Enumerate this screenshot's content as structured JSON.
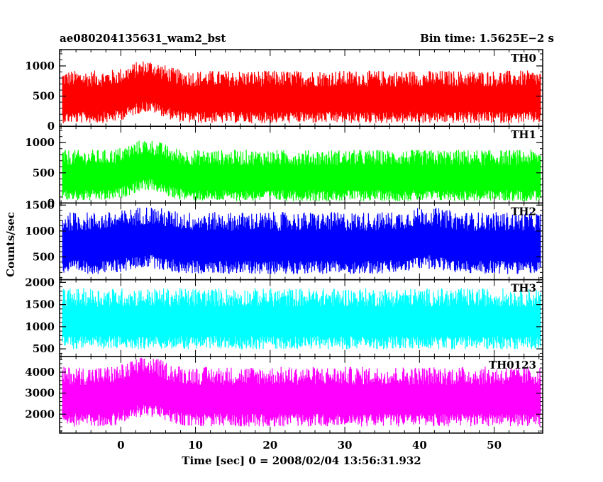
{
  "header": {
    "title": "ae080204135631_wam2_bst",
    "bin_time": "Bin time: 1.5625E−2 s"
  },
  "chart_data": {
    "type": "line",
    "xlabel": "Time [sec] 0 = 2008/02/04 13:56:31.932",
    "ylabel": "Counts/sec",
    "xlim": [
      -8.2,
      56.5
    ],
    "data_range": [
      -7.8,
      56.2
    ],
    "x_ticks": [
      0,
      10,
      20,
      30,
      40,
      50
    ],
    "x_tick_labels": [
      "0",
      "10",
      "20",
      "30",
      "40",
      "50"
    ],
    "panels": [
      {
        "name": "TH0",
        "color": "#ff0000",
        "ylim": [
          0,
          1270
        ],
        "y_ticks": [
          0,
          500,
          1000
        ],
        "y_tick_labels": [
          "0",
          "500",
          "1000"
        ],
        "mean": 430,
        "spread": 190,
        "envelope": [
          0,
          1270
        ],
        "bumps": [
          {
            "x": 3.5,
            "width": 3,
            "amp": 180
          }
        ]
      },
      {
        "name": "TH1",
        "color": "#00ff00",
        "ylim": [
          0,
          1270
        ],
        "y_ticks": [
          0,
          500,
          1000
        ],
        "y_tick_labels": [
          "0",
          "500",
          "1000"
        ],
        "mean": 400,
        "spread": 185,
        "envelope": [
          0,
          1270
        ],
        "bumps": [
          {
            "x": 3.5,
            "width": 3,
            "amp": 180
          }
        ]
      },
      {
        "name": "TH2",
        "color": "#0000ff",
        "ylim": [
          60,
          1540
        ],
        "y_ticks": [
          500,
          1000,
          1500
        ],
        "y_tick_labels": [
          "500",
          "1000",
          "1500"
        ],
        "mean": 690,
        "spread": 260,
        "envelope": [
          60,
          1540
        ],
        "bumps": [
          {
            "x": 3.5,
            "width": 3,
            "amp": 120
          },
          {
            "x": 41,
            "width": 3,
            "amp": 100
          }
        ]
      },
      {
        "name": "TH3",
        "color": "#00ffff",
        "ylim": [
          330,
          2060
        ],
        "y_ticks": [
          500,
          1000,
          1500,
          2000
        ],
        "y_tick_labels": [
          "500",
          "1000",
          "1500",
          "2000"
        ],
        "mean": 1090,
        "spread": 300,
        "envelope": [
          330,
          2060
        ],
        "bumps": []
      },
      {
        "name": "TH0123",
        "color": "#ff00ff",
        "ylim": [
          1100,
          4750
        ],
        "y_ticks": [
          2000,
          3000,
          4000
        ],
        "y_tick_labels": [
          "2000",
          "3000",
          "4000"
        ],
        "mean": 2650,
        "spread": 620,
        "envelope": [
          1100,
          4750
        ],
        "bumps": [
          {
            "x": 3.5,
            "width": 3,
            "amp": 480
          }
        ]
      }
    ]
  }
}
